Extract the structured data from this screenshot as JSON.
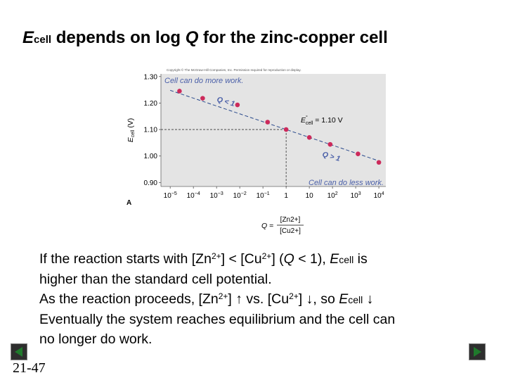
{
  "title": {
    "e_letter": "E",
    "e_sub": "cell",
    "rest": " depends on log ",
    "q": "Q",
    "end": " for the zinc-copper cell"
  },
  "chart_data": {
    "type": "scatter",
    "copyright": "Copyright © The McGraw-Hill Companies, Inc. Permission required for reproduction or display.",
    "panel_label": "A",
    "ylabel": "Ecell (V)",
    "ylabel_main": "E",
    "ylabel_sub": "cell",
    "ylabel_unit": " (V)",
    "xlabel_q": "Q",
    "xlabel_eq": " = ",
    "xlabel_num": "[Zn2+]",
    "xlabel_den": "[Cu2+]",
    "log_scale_x": true,
    "xlim_exp": [
      -5.4,
      4.3
    ],
    "ylim": [
      0.885,
      1.31
    ],
    "x_tick_labels": [
      "10−5",
      "10−4",
      "10−3",
      "10−2",
      "10−1",
      "1",
      "10",
      "102",
      "103",
      "104"
    ],
    "y_ticks": [
      0.9,
      1.0,
      1.1,
      1.2,
      1.3
    ],
    "y_tick_labels": [
      "0.90",
      "1.00",
      "1.10",
      "1.20",
      "1.30"
    ],
    "points": [
      {
        "log_q": -4.6,
        "e": 1.245
      },
      {
        "log_q": -3.6,
        "e": 1.218
      },
      {
        "log_q": -2.1,
        "e": 1.193
      },
      {
        "log_q": -0.8,
        "e": 1.128
      },
      {
        "log_q": 0.0,
        "e": 1.1
      },
      {
        "log_q": 1.0,
        "e": 1.07
      },
      {
        "log_q": 1.9,
        "e": 1.044
      },
      {
        "log_q": 3.1,
        "e": 1.008
      },
      {
        "log_q": 4.0,
        "e": 0.976
      }
    ],
    "line": {
      "from_log_q": -5.0,
      "to_log_q": 4.0,
      "e_at_zero": 1.1,
      "slope_per_decade": -0.0296
    },
    "reference": {
      "log_q": 0.0,
      "e": 1.1
    },
    "annotations": {
      "top": "Cell can do more work.",
      "bottom": "Cell can do less work.",
      "q_lt": "Q < 1",
      "q_gt": "Q > 1",
      "e0_main": "E",
      "e0_sup": "°",
      "e0_sub": "cell",
      "e0_value": " = 1.10 V"
    },
    "colors": {
      "plot_bg": "#e4e4e4",
      "points": "#cc2a5b",
      "annotation": "#4a5fa8",
      "line": "#2a4a8c",
      "guides": "#333333"
    }
  },
  "body": {
    "line1_a": "If the reaction starts with [Zn",
    "line1_sup1": "2+",
    "line1_b": "] < [Cu",
    "line1_sup2": "2+",
    "line1_c": "] (",
    "line1_q": "Q",
    "line1_d": " < 1), ",
    "line1_e": "E",
    "line1_sub": "cell",
    "line1_f": " is",
    "line2": "higher than the standard cell potential.",
    "line3_a": " As the reaction proceeds, [Zn",
    "line3_sup1": "2+",
    "line3_b": "] ↑  vs. [Cu",
    "line3_sup2": "2+",
    "line3_c": "] ↓, so ",
    "line3_e": "E",
    "line3_sub": "cell",
    "line3_d": " ↓",
    "line4": "Eventually the system reaches equilibrium and the cell can",
    "line5": "no longer do work."
  },
  "footer": {
    "page": "21-47",
    "back_icon": "triangle-left-icon",
    "next_icon": "triangle-right-icon"
  }
}
